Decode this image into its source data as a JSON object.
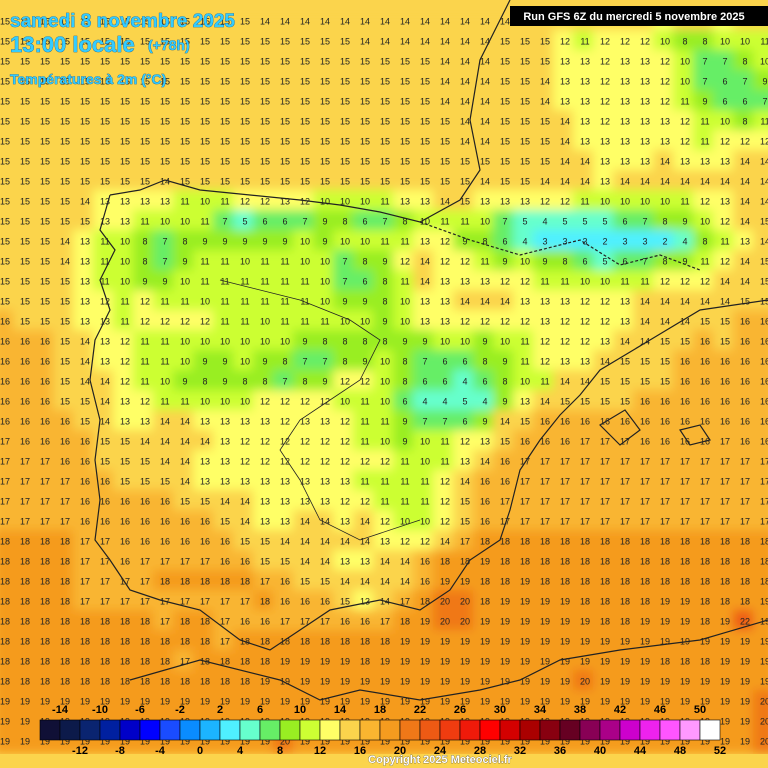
{
  "header": {
    "date": "samedi 8 novembre 2025",
    "time": "13:00 locale",
    "lead": "(+78h)",
    "variable": "Températures à 2m (°C)",
    "run": "Run GFS 6Z du mercredi 5 novembre 2025"
  },
  "grid": {
    "rows": [
      [
        15,
        15,
        15,
        15,
        15,
        15,
        15,
        15,
        15,
        15,
        15,
        15,
        15,
        14,
        14,
        14,
        14,
        14,
        14,
        14,
        14,
        14,
        14,
        14,
        14,
        14,
        14,
        14,
        14,
        14,
        14,
        15,
        14,
        13,
        14,
        14,
        13,
        14,
        14
      ],
      [
        15,
        15,
        15,
        15,
        15,
        15,
        15,
        15,
        15,
        15,
        15,
        15,
        15,
        15,
        15,
        15,
        15,
        15,
        14,
        14,
        14,
        14,
        14,
        14,
        14,
        15,
        15,
        15,
        12,
        11,
        12,
        12,
        12,
        10,
        8,
        8,
        10,
        10,
        11
      ],
      [
        15,
        15,
        15,
        15,
        15,
        15,
        15,
        15,
        15,
        15,
        15,
        15,
        15,
        15,
        15,
        15,
        15,
        15,
        15,
        15,
        15,
        15,
        14,
        14,
        14,
        15,
        15,
        15,
        13,
        13,
        12,
        13,
        13,
        12,
        10,
        7,
        7,
        8,
        10
      ],
      [
        15,
        15,
        15,
        15,
        15,
        15,
        15,
        15,
        15,
        15,
        15,
        15,
        15,
        15,
        15,
        15,
        15,
        15,
        15,
        15,
        15,
        15,
        14,
        14,
        14,
        15,
        15,
        14,
        13,
        13,
        12,
        13,
        13,
        12,
        10,
        7,
        6,
        7,
        9
      ],
      [
        15,
        15,
        15,
        15,
        15,
        15,
        15,
        15,
        15,
        15,
        15,
        15,
        15,
        15,
        15,
        15,
        15,
        15,
        15,
        15,
        15,
        15,
        14,
        14,
        14,
        15,
        15,
        14,
        13,
        13,
        12,
        13,
        13,
        12,
        11,
        9,
        6,
        6,
        7
      ],
      [
        15,
        15,
        15,
        15,
        15,
        15,
        15,
        15,
        15,
        15,
        15,
        15,
        15,
        15,
        15,
        15,
        15,
        15,
        15,
        15,
        15,
        15,
        15,
        14,
        14,
        15,
        15,
        15,
        14,
        13,
        12,
        13,
        13,
        13,
        12,
        11,
        10,
        8,
        11
      ],
      [
        15,
        15,
        15,
        15,
        15,
        15,
        15,
        15,
        15,
        15,
        15,
        15,
        15,
        15,
        15,
        15,
        15,
        15,
        15,
        15,
        15,
        15,
        15,
        14,
        14,
        15,
        15,
        15,
        14,
        13,
        13,
        13,
        13,
        13,
        12,
        11,
        12,
        12,
        12
      ],
      [
        15,
        15,
        15,
        15,
        15,
        15,
        15,
        15,
        15,
        15,
        15,
        15,
        15,
        15,
        15,
        15,
        15,
        15,
        15,
        15,
        15,
        15,
        15,
        15,
        15,
        15,
        15,
        15,
        14,
        14,
        13,
        13,
        13,
        14,
        13,
        13,
        13,
        14,
        14
      ],
      [
        15,
        15,
        15,
        15,
        15,
        15,
        15,
        15,
        14,
        15,
        15,
        15,
        15,
        15,
        15,
        15,
        15,
        15,
        15,
        15,
        15,
        15,
        15,
        15,
        14,
        15,
        15,
        14,
        14,
        14,
        13,
        14,
        14,
        14,
        14,
        14,
        14,
        14,
        14
      ],
      [
        15,
        15,
        15,
        15,
        14,
        13,
        13,
        13,
        13,
        11,
        10,
        11,
        12,
        12,
        13,
        12,
        10,
        10,
        10,
        11,
        13,
        13,
        14,
        15,
        13,
        13,
        13,
        12,
        12,
        11,
        10,
        10,
        10,
        10,
        11,
        12,
        13,
        14,
        14
      ],
      [
        15,
        15,
        15,
        15,
        15,
        13,
        13,
        11,
        10,
        10,
        11,
        7,
        5,
        6,
        6,
        7,
        9,
        8,
        6,
        7,
        8,
        10,
        11,
        11,
        10,
        7,
        5,
        4,
        5,
        5,
        5,
        6,
        7,
        8,
        9,
        10,
        12,
        14,
        15
      ],
      [
        15,
        15,
        15,
        14,
        13,
        11,
        10,
        8,
        7,
        8,
        9,
        9,
        9,
        9,
        9,
        10,
        9,
        10,
        10,
        11,
        11,
        13,
        12,
        9,
        8,
        6,
        4,
        3,
        3,
        3,
        2,
        3,
        3,
        2,
        4,
        8,
        11,
        13,
        14
      ],
      [
        15,
        15,
        15,
        14,
        13,
        11,
        10,
        8,
        7,
        9,
        11,
        11,
        10,
        11,
        11,
        10,
        10,
        7,
        8,
        9,
        12,
        14,
        12,
        12,
        11,
        9,
        10,
        9,
        8,
        6,
        5,
        6,
        7,
        8,
        9,
        11,
        12,
        14,
        15
      ],
      [
        15,
        15,
        15,
        15,
        13,
        11,
        10,
        9,
        9,
        10,
        11,
        11,
        11,
        11,
        11,
        11,
        10,
        7,
        6,
        8,
        11,
        14,
        13,
        13,
        13,
        12,
        12,
        11,
        11,
        10,
        10,
        11,
        11,
        12,
        12,
        12,
        14,
        14,
        15
      ],
      [
        15,
        15,
        15,
        15,
        13,
        12,
        11,
        12,
        11,
        11,
        10,
        11,
        11,
        11,
        11,
        11,
        10,
        9,
        9,
        8,
        10,
        13,
        13,
        14,
        14,
        14,
        13,
        13,
        13,
        12,
        12,
        13,
        14,
        14,
        14,
        14,
        14,
        15,
        15
      ],
      [
        16,
        15,
        15,
        15,
        13,
        13,
        11,
        12,
        12,
        12,
        12,
        11,
        11,
        10,
        11,
        11,
        11,
        10,
        10,
        9,
        10,
        13,
        13,
        12,
        12,
        12,
        12,
        13,
        12,
        12,
        12,
        13,
        14,
        14,
        14,
        15,
        15,
        16,
        16
      ],
      [
        16,
        16,
        16,
        15,
        14,
        13,
        12,
        11,
        11,
        10,
        10,
        10,
        10,
        10,
        10,
        9,
        8,
        8,
        8,
        8,
        9,
        9,
        10,
        10,
        9,
        10,
        11,
        12,
        12,
        12,
        13,
        14,
        14,
        15,
        15,
        16,
        15,
        16,
        16
      ],
      [
        16,
        16,
        16,
        15,
        14,
        13,
        12,
        11,
        11,
        10,
        9,
        9,
        10,
        9,
        8,
        7,
        7,
        8,
        9,
        10,
        8,
        7,
        6,
        6,
        8,
        9,
        11,
        12,
        13,
        13,
        14,
        15,
        15,
        15,
        16,
        16,
        16,
        16,
        16
      ],
      [
        16,
        16,
        16,
        15,
        14,
        14,
        12,
        11,
        10,
        9,
        8,
        9,
        8,
        8,
        7,
        8,
        9,
        12,
        12,
        10,
        8,
        6,
        6,
        4,
        6,
        8,
        10,
        11,
        14,
        14,
        15,
        15,
        15,
        15,
        16,
        16,
        16,
        16,
        16
      ],
      [
        16,
        16,
        16,
        15,
        15,
        14,
        13,
        12,
        11,
        11,
        10,
        10,
        10,
        12,
        12,
        12,
        12,
        10,
        11,
        10,
        6,
        4,
        4,
        5,
        4,
        9,
        13,
        14,
        15,
        15,
        15,
        15,
        16,
        16,
        16,
        16,
        16,
        16,
        16
      ],
      [
        16,
        16,
        16,
        16,
        15,
        14,
        13,
        13,
        14,
        14,
        13,
        13,
        13,
        13,
        12,
        13,
        13,
        12,
        11,
        11,
        9,
        7,
        7,
        6,
        9,
        14,
        15,
        16,
        16,
        16,
        16,
        16,
        16,
        16,
        16,
        16,
        16,
        16,
        16
      ],
      [
        17,
        16,
        16,
        16,
        16,
        15,
        15,
        14,
        14,
        14,
        14,
        13,
        12,
        12,
        12,
        12,
        12,
        12,
        11,
        10,
        9,
        10,
        11,
        12,
        13,
        15,
        16,
        16,
        16,
        17,
        17,
        17,
        16,
        16,
        16,
        16,
        17,
        16,
        16
      ],
      [
        17,
        17,
        17,
        16,
        16,
        15,
        15,
        15,
        14,
        14,
        13,
        13,
        12,
        12,
        12,
        12,
        12,
        12,
        12,
        12,
        11,
        10,
        11,
        13,
        14,
        16,
        17,
        17,
        17,
        17,
        17,
        17,
        17,
        17,
        17,
        17,
        17,
        17,
        17
      ],
      [
        17,
        17,
        17,
        17,
        16,
        16,
        15,
        15,
        15,
        14,
        13,
        13,
        13,
        13,
        13,
        13,
        13,
        13,
        11,
        11,
        11,
        11,
        12,
        14,
        16,
        16,
        17,
        17,
        17,
        17,
        17,
        17,
        17,
        17,
        17,
        17,
        17,
        17,
        17
      ],
      [
        17,
        17,
        17,
        17,
        16,
        16,
        16,
        16,
        16,
        15,
        15,
        14,
        14,
        13,
        13,
        13,
        13,
        12,
        12,
        11,
        11,
        11,
        12,
        15,
        16,
        17,
        17,
        17,
        17,
        17,
        17,
        17,
        17,
        17,
        17,
        17,
        17,
        17,
        17
      ],
      [
        17,
        17,
        17,
        17,
        16,
        16,
        16,
        16,
        16,
        16,
        16,
        15,
        14,
        13,
        13,
        14,
        14,
        13,
        14,
        12,
        10,
        10,
        12,
        15,
        16,
        17,
        17,
        17,
        17,
        17,
        17,
        17,
        17,
        17,
        17,
        17,
        17,
        17,
        17
      ],
      [
        18,
        18,
        18,
        18,
        17,
        17,
        16,
        16,
        16,
        16,
        16,
        16,
        15,
        15,
        14,
        14,
        14,
        14,
        14,
        13,
        12,
        12,
        14,
        17,
        18,
        18,
        18,
        18,
        18,
        18,
        18,
        18,
        18,
        18,
        18,
        18,
        18,
        18,
        18
      ],
      [
        18,
        18,
        18,
        18,
        17,
        17,
        16,
        17,
        17,
        17,
        17,
        16,
        16,
        15,
        15,
        14,
        14,
        13,
        13,
        14,
        14,
        16,
        18,
        18,
        19,
        18,
        18,
        18,
        18,
        18,
        18,
        18,
        18,
        18,
        18,
        18,
        18,
        18,
        18
      ],
      [
        18,
        18,
        18,
        18,
        17,
        17,
        17,
        17,
        18,
        18,
        18,
        18,
        18,
        17,
        16,
        15,
        15,
        14,
        14,
        14,
        14,
        16,
        19,
        19,
        18,
        18,
        19,
        18,
        18,
        18,
        18,
        18,
        18,
        18,
        18,
        18,
        18,
        18,
        18
      ],
      [
        18,
        18,
        18,
        18,
        17,
        17,
        17,
        17,
        17,
        17,
        17,
        17,
        17,
        18,
        16,
        16,
        16,
        15,
        13,
        14,
        17,
        18,
        20,
        20,
        18,
        19,
        19,
        19,
        19,
        18,
        18,
        18,
        18,
        19,
        19,
        18,
        18,
        18,
        19
      ],
      [
        18,
        18,
        18,
        18,
        18,
        18,
        18,
        18,
        17,
        18,
        18,
        17,
        16,
        16,
        17,
        17,
        17,
        16,
        16,
        17,
        18,
        19,
        20,
        20,
        19,
        19,
        19,
        19,
        19,
        19,
        18,
        18,
        19,
        19,
        19,
        18,
        19,
        22,
        19
      ],
      [
        18,
        18,
        18,
        18,
        18,
        18,
        18,
        18,
        18,
        18,
        18,
        17,
        18,
        18,
        18,
        18,
        18,
        18,
        18,
        18,
        19,
        19,
        19,
        19,
        19,
        19,
        19,
        19,
        19,
        19,
        19,
        19,
        19,
        19,
        19,
        19,
        19,
        19,
        19
      ],
      [
        18,
        18,
        18,
        18,
        18,
        18,
        18,
        18,
        18,
        17,
        18,
        18,
        18,
        18,
        19,
        19,
        19,
        19,
        18,
        19,
        19,
        19,
        19,
        19,
        19,
        19,
        19,
        19,
        19,
        19,
        19,
        19,
        19,
        18,
        18,
        18,
        19,
        19,
        19
      ],
      [
        18,
        18,
        18,
        18,
        18,
        18,
        18,
        18,
        18,
        18,
        18,
        18,
        18,
        19,
        19,
        19,
        19,
        19,
        19,
        19,
        19,
        19,
        19,
        19,
        19,
        19,
        19,
        19,
        19,
        20,
        19,
        19,
        19,
        19,
        19,
        19,
        19,
        19,
        19
      ],
      [
        19,
        19,
        19,
        19,
        19,
        19,
        19,
        19,
        19,
        19,
        19,
        19,
        19,
        19,
        19,
        19,
        19,
        19,
        19,
        19,
        19,
        19,
        19,
        19,
        19,
        19,
        19,
        19,
        19,
        19,
        19,
        19,
        19,
        19,
        19,
        19,
        19,
        19,
        20
      ],
      [
        19,
        19,
        19,
        19,
        19,
        19,
        19,
        19,
        19,
        19,
        19,
        19,
        19,
        19,
        19,
        19,
        19,
        19,
        19,
        19,
        19,
        19,
        19,
        19,
        19,
        19,
        19,
        19,
        19,
        19,
        19,
        19,
        19,
        19,
        19,
        19,
        19,
        19,
        20
      ],
      [
        19,
        19,
        19,
        19,
        19,
        19,
        19,
        19,
        19,
        19,
        19,
        19,
        19,
        19,
        20,
        19,
        19,
        19,
        19,
        19,
        19,
        19,
        19,
        19,
        19,
        19,
        19,
        19,
        19,
        19,
        19,
        19,
        19,
        19,
        19,
        19,
        19,
        19,
        20
      ]
    ]
  },
  "scale": {
    "ticks": [
      -14,
      -12,
      -10,
      -8,
      -6,
      -4,
      -2,
      0,
      2,
      4,
      6,
      8,
      10,
      12,
      14,
      16,
      18,
      20,
      22,
      24,
      26,
      28,
      30,
      32,
      34,
      36,
      38,
      40,
      42,
      44,
      46,
      48,
      50,
      52
    ],
    "colors": [
      "#101036",
      "#0c1a4a",
      "#0a2470",
      "#0020a0",
      "#0000c8",
      "#0000ff",
      "#1a4cff",
      "#0a8cff",
      "#1cb4ff",
      "#4ff0ff",
      "#66ffcc",
      "#66ee66",
      "#99ee22",
      "#ccff33",
      "#ffff66",
      "#fbd44c",
      "#f9b530",
      "#f59b1f",
      "#f07818",
      "#ee5a14",
      "#f03c10",
      "#f01a0a",
      "#ff0000",
      "#d40000",
      "#aa0000",
      "#880010",
      "#660022",
      "#880055",
      "#aa0088",
      "#cc00cc",
      "#ee22ee",
      "#ff55ff",
      "#ff99ff",
      "#ffffff"
    ]
  },
  "copyright": "Copyright 2025 Meteociel.fr"
}
